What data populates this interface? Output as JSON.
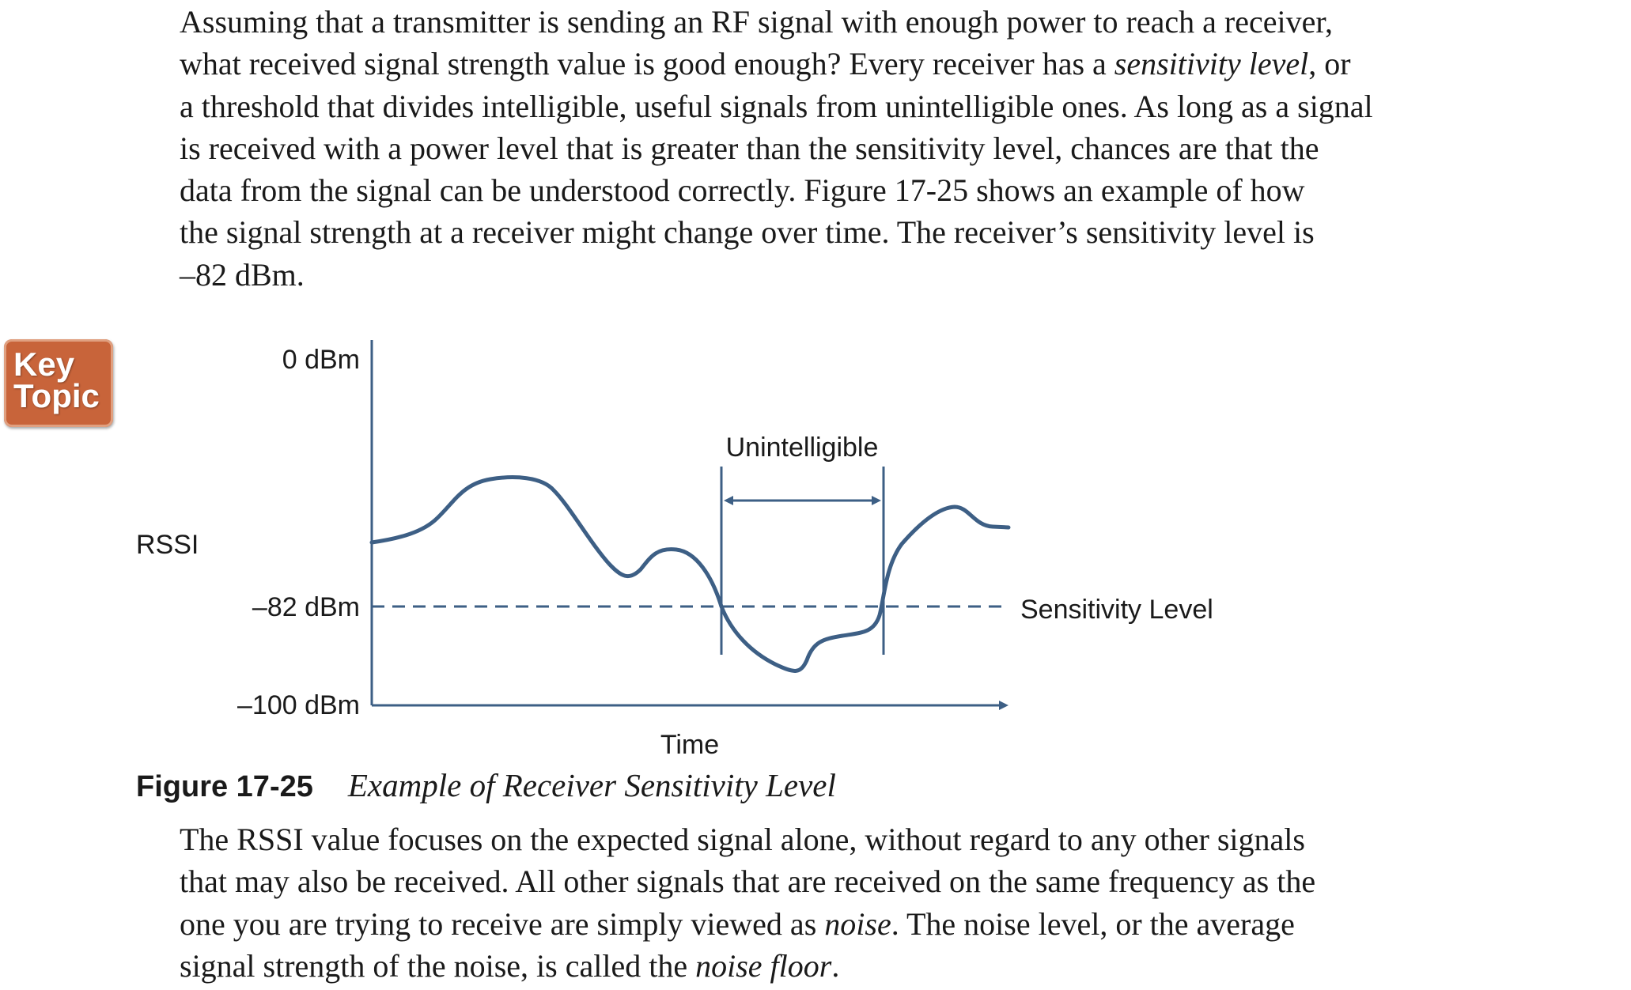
{
  "intro_paragraph": {
    "line1": "Assuming that a transmitter is sending an RF signal with enough power to reach a receiver,",
    "line2a": "what received signal strength value is good enough? Every receiver has a ",
    "line2_term": "sensitivity level",
    "line2b": ", or",
    "line3": "a threshold that divides intelligible, useful signals from unintelligible ones. As long as a signal",
    "line4": "is received with a power level that is greater than the sensitivity level, chances are that the",
    "line5": "data from the signal can be understood correctly. Figure 17-25 shows an example of how",
    "line6": "the signal strength at a receiver might change over time. The receiver’s sensitivity level is",
    "line7": "–82 dBm."
  },
  "key_topic": {
    "line1": "Key",
    "line2": "Topic"
  },
  "figure": {
    "y_axis_title": "RSSI",
    "x_axis_title": "Time",
    "tick_top": "0 dBm",
    "tick_sensitivity": "–82 dBm",
    "tick_bottom": "–100 dBm",
    "region_label": "Unintelligible",
    "threshold_label": "Sensitivity Level",
    "colors": {
      "curve": "#3d5f85",
      "axes": "#3d5f85",
      "text": "#1a1a1a"
    }
  },
  "chart_data": {
    "type": "line",
    "title": "",
    "xlabel": "Time",
    "ylabel": "RSSI",
    "ylim": [
      -100,
      0
    ],
    "y_tick_labels": [
      "0 dBm",
      "–82 dBm",
      "–100 dBm"
    ],
    "threshold": {
      "value": -82,
      "label": "Sensitivity Level"
    },
    "region": {
      "label": "Unintelligible",
      "x_range": [
        0.55,
        0.81
      ]
    },
    "series": [
      {
        "x": [
          0,
          0.09,
          0.16,
          0.22,
          0.27,
          0.33,
          0.38,
          0.41,
          0.46,
          0.5,
          0.55,
          0.58,
          0.64,
          0.68,
          0.71,
          0.76,
          0.8,
          0.81,
          0.83,
          0.87,
          0.93,
          0.96,
          1.0
        ],
        "y": [
          -63,
          -59,
          -50,
          -48,
          -50,
          -62,
          -70,
          -68,
          -63,
          -67,
          -82,
          -88,
          -94,
          -96,
          -89,
          -87,
          -84,
          -82,
          -70,
          -61,
          -55,
          -59,
          -60
        ]
      }
    ]
  },
  "caption": {
    "number": "Figure 17-25",
    "title": "Example of Receiver Sensitivity Level"
  },
  "closing_paragraph": {
    "line1": "The RSSI value focuses on the expected signal alone, without regard to any other signals",
    "line2": "that may also be received. All other signals that are received on the same frequency as the",
    "line3a": "one you are trying to receive are simply viewed as ",
    "line3_term": "noise",
    "line3b": ". The noise level, or the average",
    "line4a": "signal strength of the noise, is called the ",
    "line4_term": "noise floor",
    "line4b": "."
  }
}
